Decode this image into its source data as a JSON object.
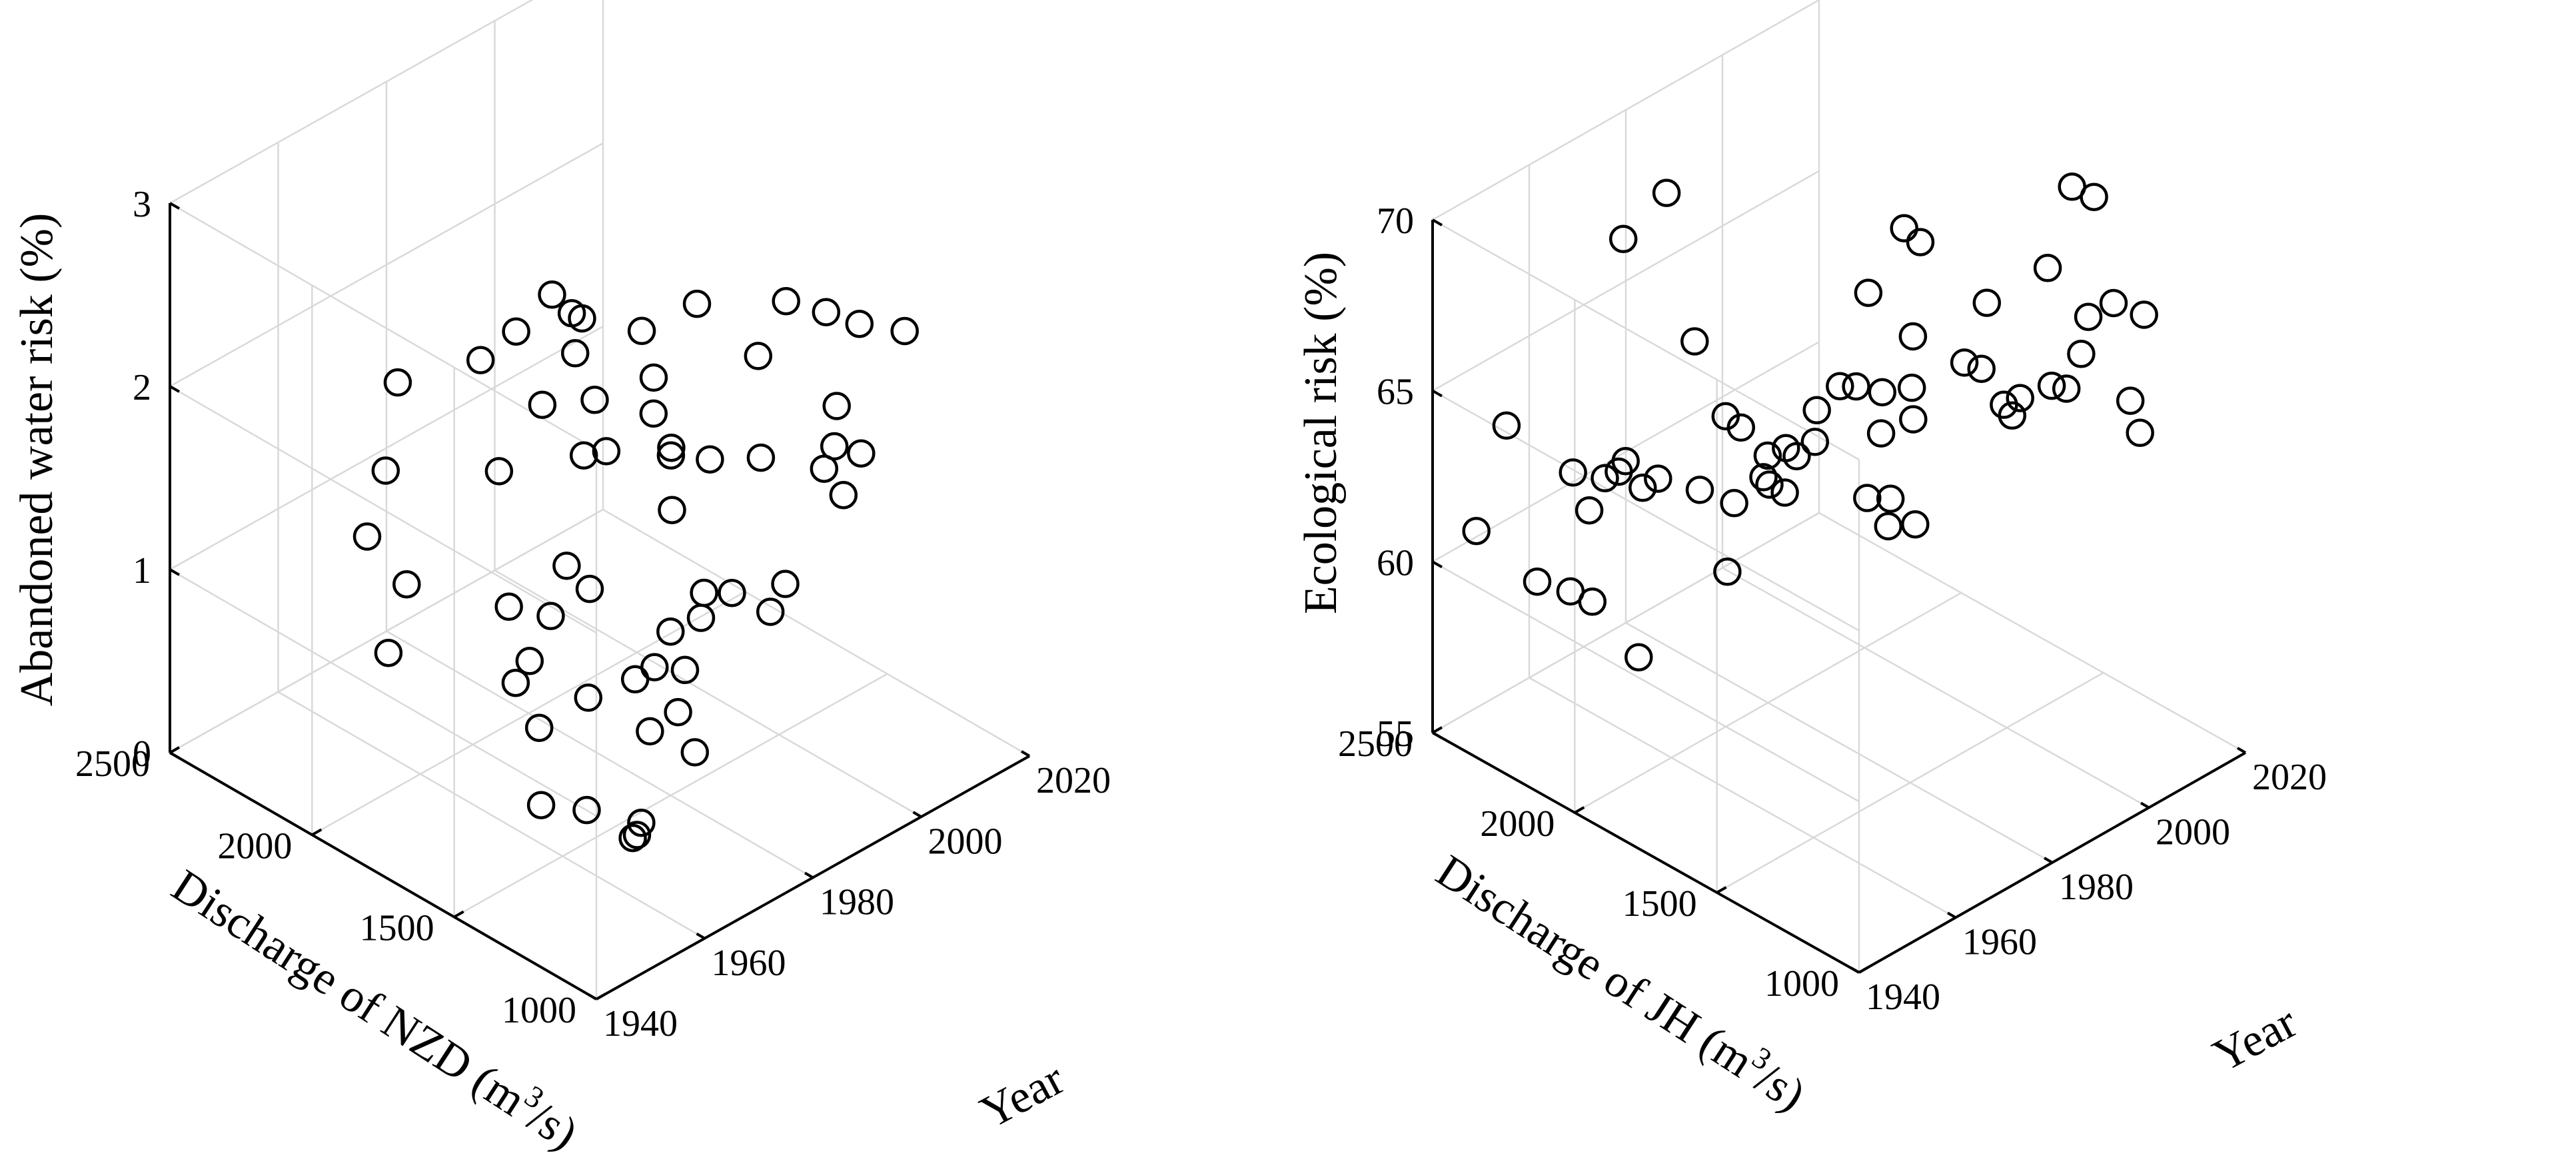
{
  "chart_data": [
    {
      "type": "scatter",
      "title": "",
      "xlabel": "Year",
      "ylabel": "Discharge of NZD (m3/s)",
      "ylabel_parts": {
        "pre": "Discharge of NZD (m",
        "sup": "3",
        "post": "/s)"
      },
      "zlabel": "Abandoned water risk (%)",
      "xlim": [
        1940,
        2020
      ],
      "ylim": [
        1000,
        2500
      ],
      "zlim": [
        0,
        3
      ],
      "xticks": [
        "1940",
        "1960",
        "1980",
        "2000",
        "2020"
      ],
      "yticks": [
        "1000",
        "1500",
        "2000",
        "2500"
      ],
      "zticks": [
        "0",
        "1",
        "2",
        "3"
      ],
      "grid": true,
      "marker": "open circle",
      "points": [
        {
          "x": 1955,
          "y": 1480,
          "z": 0.38
        },
        {
          "x": 1963,
          "y": 1295,
          "z": 0.25
        },
        {
          "x": 1963,
          "y": 1280,
          "z": 0.33
        },
        {
          "x": 1963,
          "y": 1310,
          "z": 0.22
        },
        {
          "x": 1965,
          "y": 1510,
          "z": 0.16
        },
        {
          "x": 1962,
          "y": 1620,
          "z": 0.56
        },
        {
          "x": 1965,
          "y": 1760,
          "z": 0.63
        },
        {
          "x": 1966,
          "y": 1730,
          "z": 0.76
        },
        {
          "x": 1970,
          "y": 1600,
          "z": 0.61
        },
        {
          "x": 1973,
          "y": 1440,
          "z": 0.52
        },
        {
          "x": 1975,
          "y": 1320,
          "z": 0.48
        },
        {
          "x": 1974,
          "y": 1360,
          "z": 0.68
        },
        {
          "x": 1975,
          "y": 1530,
          "z": 0.69
        },
        {
          "x": 1977,
          "y": 1500,
          "z": 0.75
        },
        {
          "x": 1980,
          "y": 1450,
          "z": 0.73
        },
        {
          "x": 1981,
          "y": 1520,
          "z": 0.86
        },
        {
          "x": 1984,
          "y": 1470,
          "z": 0.93
        },
        {
          "x": 1972,
          "y": 1770,
          "z": 0.87
        },
        {
          "x": 1975,
          "y": 1690,
          "z": 1.04
        },
        {
          "x": 1976,
          "y": 1790,
          "z": 1.06
        },
        {
          "x": 1983,
          "y": 1440,
          "z": 1.11
        },
        {
          "x": 1985,
          "y": 1380,
          "z": 1.13
        },
        {
          "x": 1990,
          "y": 1340,
          "z": 0.98
        },
        {
          "x": 1986,
          "y": 1610,
          "z": 1.36
        },
        {
          "x": 1990,
          "y": 1690,
          "z": 1.52
        },
        {
          "x": 1993,
          "y": 1610,
          "z": 1.52
        },
        {
          "x": 1991,
          "y": 1770,
          "z": 1.66
        },
        {
          "x": 1952,
          "y": 1960,
          "z": 0.83
        },
        {
          "x": 1958,
          "y": 2010,
          "z": 1.06
        },
        {
          "x": 1957,
          "y": 2130,
          "z": 1.23
        },
        {
          "x": 1962,
          "y": 2160,
          "z": 1.48
        },
        {
          "x": 1969,
          "y": 1860,
          "z": 0.89
        },
        {
          "x": 1974,
          "y": 1990,
          "z": 1.43
        },
        {
          "x": 1982,
          "y": 1990,
          "z": 1.66
        },
        {
          "x": 1986,
          "y": 1920,
          "z": 1.38
        },
        {
          "x": 1987,
          "y": 1860,
          "z": 1.44
        },
        {
          "x": 1988,
          "y": 1920,
          "z": 1.65
        },
        {
          "x": 1970,
          "y": 2270,
          "z": 1.73
        },
        {
          "x": 1979,
          "y": 2150,
          "z": 1.81
        },
        {
          "x": 1984,
          "y": 2120,
          "z": 1.91
        },
        {
          "x": 1988,
          "y": 2070,
          "z": 2.09
        },
        {
          "x": 1998,
          "y": 1440,
          "z": 0.91
        },
        {
          "x": 2004,
          "y": 1640,
          "z": 1.32
        },
        {
          "x": 1999,
          "y": 1860,
          "z": 1.26
        },
        {
          "x": 2001,
          "y": 1960,
          "z": 1.52
        },
        {
          "x": 2003,
          "y": 2040,
          "z": 1.67
        },
        {
          "x": 1997,
          "y": 2160,
          "z": 1.54
        },
        {
          "x": 1999,
          "y": 2210,
          "z": 1.68
        },
        {
          "x": 2003,
          "y": 2250,
          "z": 1.55
        },
        {
          "x": 2012,
          "y": 1440,
          "z": 1.39
        },
        {
          "x": 2012,
          "y": 1570,
          "z": 1.19
        },
        {
          "x": 2014,
          "y": 1540,
          "z": 1.04
        },
        {
          "x": 2016,
          "y": 1610,
          "z": 1.21
        },
        {
          "x": 2018,
          "y": 1640,
          "z": 1.37
        },
        {
          "x": 2014,
          "y": 1840,
          "z": 1.53
        },
        {
          "x": 2009,
          "y": 1960,
          "z": 1.79
        },
        {
          "x": 2016,
          "y": 1780,
          "z": 1.85
        },
        {
          "x": 2018,
          "y": 1560,
          "z": 1.89
        },
        {
          "x": 2015,
          "y": 1620,
          "z": 1.95
        },
        {
          "x": 2019,
          "y": 1420,
          "z": 1.96
        }
      ]
    },
    {
      "type": "scatter",
      "title": "",
      "xlabel": "Year",
      "ylabel": "Discharge of JH (m3/s)",
      "ylabel_parts": {
        "pre": "Discharge of JH (m",
        "sup": "3",
        "post": "/s)"
      },
      "zlabel": "Ecological risk (%)",
      "xlim": [
        1940,
        2020
      ],
      "ylim": [
        1000,
        2500
      ],
      "zlim": [
        55,
        70
      ],
      "xticks": [
        "1940",
        "1960",
        "1980",
        "2000",
        "2020"
      ],
      "yticks": [
        "1000",
        "1500",
        "2000",
        "2500"
      ],
      "zticks": [
        "55",
        "60",
        "65",
        "70"
      ],
      "grid": true,
      "marker": "open circle",
      "points": [
        {
          "x": 1942,
          "y": 2380,
          "z": 61.3
        },
        {
          "x": 1944,
          "y": 2200,
          "z": 60.5
        },
        {
          "x": 1945,
          "y": 2100,
          "z": 60.6
        },
        {
          "x": 1946,
          "y": 2040,
          "z": 60.5
        },
        {
          "x": 1950,
          "y": 2410,
          "z": 63.6
        },
        {
          "x": 1952,
          "y": 2210,
          "z": 63.0
        },
        {
          "x": 1955,
          "y": 2100,
          "z": 63.3
        },
        {
          "x": 1957,
          "y": 2050,
          "z": 62.9
        },
        {
          "x": 1959,
          "y": 2030,
          "z": 63.1
        },
        {
          "x": 1957,
          "y": 2110,
          "z": 63.4
        },
        {
          "x": 1960,
          "y": 1900,
          "z": 63.3
        },
        {
          "x": 1963,
          "y": 1830,
          "z": 63.0
        },
        {
          "x": 1961,
          "y": 1820,
          "z": 61.2
        },
        {
          "x": 1965,
          "y": 1740,
          "z": 63.8
        },
        {
          "x": 1967,
          "y": 1720,
          "z": 63.5
        },
        {
          "x": 1967,
          "y": 1780,
          "z": 64.3
        },
        {
          "x": 1969,
          "y": 1750,
          "z": 64.5
        },
        {
          "x": 1965,
          "y": 1840,
          "z": 65.0
        },
        {
          "x": 1963,
          "y": 1860,
          "z": 65.4
        },
        {
          "x": 1966,
          "y": 2020,
          "z": 66.6
        },
        {
          "x": 1955,
          "y": 2030,
          "z": 58.2
        },
        {
          "x": 1953,
          "y": 2170,
          "z": 62.0
        },
        {
          "x": 1958,
          "y": 2200,
          "z": 62.4
        },
        {
          "x": 1963,
          "y": 2220,
          "z": 68.9
        },
        {
          "x": 1969,
          "y": 2170,
          "z": 70.0
        },
        {
          "x": 1973,
          "y": 1780,
          "z": 63.8
        },
        {
          "x": 1975,
          "y": 1750,
          "z": 64.2
        },
        {
          "x": 1976,
          "y": 1760,
          "z": 65.0
        },
        {
          "x": 1979,
          "y": 1730,
          "z": 65.6
        },
        {
          "x": 1980,
          "y": 1690,
          "z": 65.7
        },
        {
          "x": 1977,
          "y": 1600,
          "z": 63.1
        },
        {
          "x": 1979,
          "y": 1560,
          "z": 62.3
        },
        {
          "x": 1984,
          "y": 1550,
          "z": 62.0
        },
        {
          "x": 1983,
          "y": 1620,
          "z": 62.5
        },
        {
          "x": 1984,
          "y": 1670,
          "z": 64.1
        },
        {
          "x": 1986,
          "y": 1700,
          "z": 65.0
        },
        {
          "x": 1988,
          "y": 1630,
          "z": 65.3
        },
        {
          "x": 1990,
          "y": 1660,
          "z": 66.5
        },
        {
          "x": 1989,
          "y": 1800,
          "z": 67.2
        },
        {
          "x": 1993,
          "y": 1530,
          "z": 66.1
        },
        {
          "x": 1997,
          "y": 1810,
          "z": 68.4
        },
        {
          "x": 1998,
          "y": 1770,
          "z": 68.1
        },
        {
          "x": 2000,
          "y": 1570,
          "z": 67.1
        },
        {
          "x": 2000,
          "y": 1510,
          "z": 64.4
        },
        {
          "x": 2001,
          "y": 1470,
          "z": 64.7
        },
        {
          "x": 2004,
          "y": 1410,
          "z": 65.1
        },
        {
          "x": 2010,
          "y": 1460,
          "z": 64.3
        },
        {
          "x": 2011,
          "y": 1400,
          "z": 66.6
        },
        {
          "x": 2012,
          "y": 1560,
          "z": 67.2
        },
        {
          "x": 2015,
          "y": 1320,
          "z": 64.2
        },
        {
          "x": 2016,
          "y": 1510,
          "z": 64.6
        },
        {
          "x": 2018,
          "y": 1430,
          "z": 66.3
        },
        {
          "x": 2019,
          "y": 1340,
          "z": 66.3
        },
        {
          "x": 2017,
          "y": 1320,
          "z": 63.1
        },
        {
          "x": 2020,
          "y": 1610,
          "z": 68.7
        },
        {
          "x": 2021,
          "y": 1550,
          "z": 68.6
        },
        {
          "x": 2007,
          "y": 1600,
          "z": 63.1
        },
        {
          "x": 2003,
          "y": 1640,
          "z": 64.6
        },
        {
          "x": 1993,
          "y": 1710,
          "z": 63.6
        },
        {
          "x": 1972,
          "y": 1880,
          "z": 62.8
        }
      ]
    }
  ]
}
